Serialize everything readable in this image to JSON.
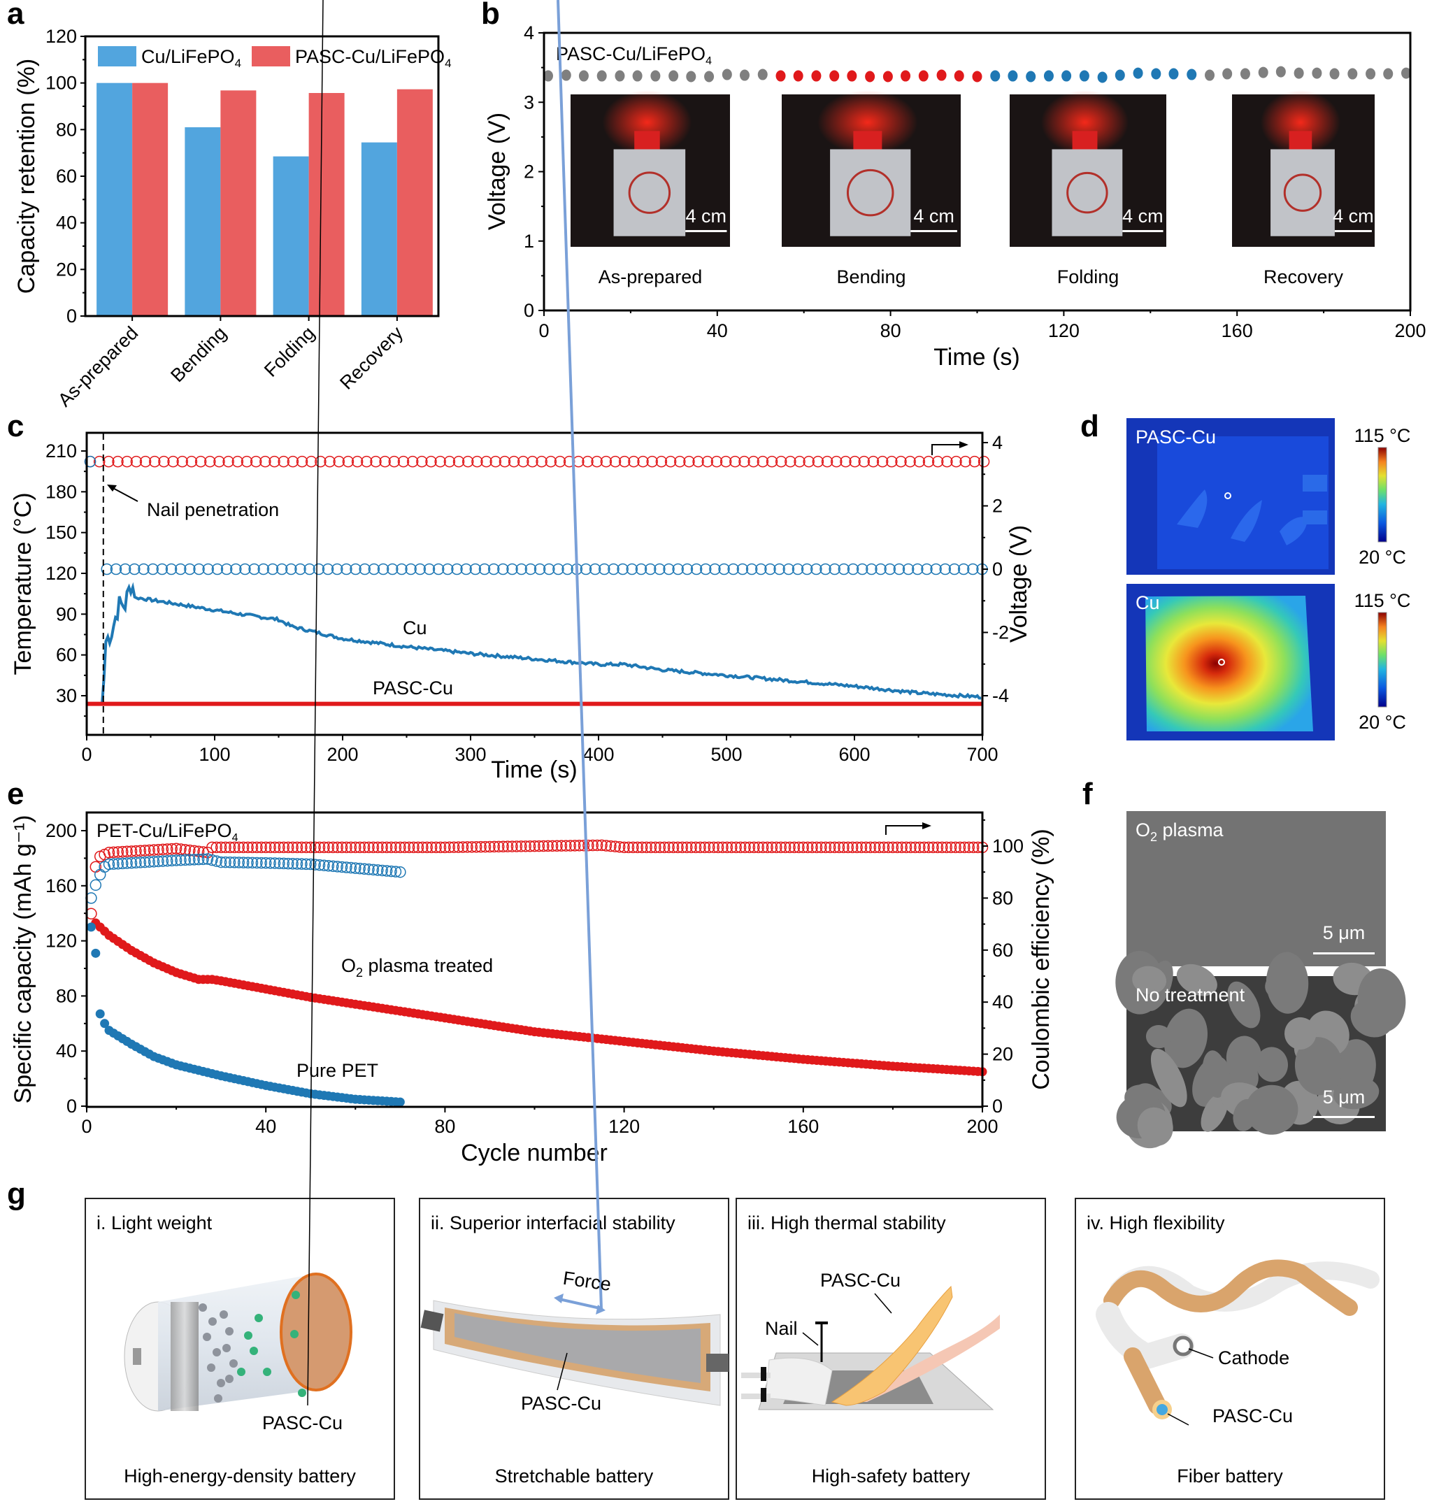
{
  "figure_labels": [
    "a",
    "b",
    "c",
    "d",
    "e",
    "f",
    "g"
  ],
  "chart_data": [
    {
      "id": "a",
      "type": "bar",
      "categories": [
        "As-prepared",
        "Bending",
        "Folding",
        "Recovery"
      ],
      "series": [
        {
          "name": "Cu/LiFePO4",
          "name_main": "Cu/LiFePO",
          "name_sub": "4",
          "color": "#52a5de",
          "values": [
            100,
            81,
            68.5,
            74.5
          ]
        },
        {
          "name": "PASC-Cu/LiFePO4",
          "name_main": "PASC-Cu/LiFePO",
          "name_sub": "4",
          "color": "#e95e5f",
          "values": [
            100,
            96.8,
            95.7,
            97.3
          ]
        }
      ],
      "xlabel": "",
      "ylabel": "Capacity retention (%)",
      "ylim": [
        0,
        120
      ],
      "yticks": [
        "0",
        "20",
        "40",
        "60",
        "80",
        "100",
        "120"
      ],
      "legend": "top"
    },
    {
      "id": "b",
      "type": "scatter",
      "title_main": "PASC-Cu/LiFePO",
      "title_sub": "4",
      "xlabel": "Time (s)",
      "ylabel": "Voltage (V)",
      "xlim": [
        0,
        200
      ],
      "ylim": [
        0,
        4
      ],
      "xticks": [
        "0",
        "40",
        "80",
        "120",
        "160",
        "200"
      ],
      "yticks": [
        "0",
        "1",
        "2",
        "3",
        "4"
      ],
      "series": [
        {
          "name": "As-prepared",
          "color": "#7f7f7f",
          "x": [
            0,
            4.2,
            8.3,
            12.5,
            16.7,
            20.8,
            25,
            29.2,
            33.3,
            37.5,
            41.7,
            45.8,
            50
          ],
          "y": [
            3.38,
            3.39,
            3.38,
            3.38,
            3.38,
            3.38,
            3.38,
            3.38,
            3.37,
            3.37,
            3.4,
            3.39,
            3.4
          ]
        },
        {
          "name": "Bending",
          "color": "#e0191b",
          "x": [
            54.2,
            58.3,
            62.5,
            66.7,
            70.8,
            75,
            79.2,
            83.3,
            87.5,
            91.7,
            95.8,
            100
          ],
          "y": [
            3.38,
            3.38,
            3.38,
            3.38,
            3.38,
            3.37,
            3.37,
            3.38,
            3.38,
            3.39,
            3.38,
            3.37
          ]
        },
        {
          "name": "Folding",
          "color": "#1f78b4",
          "x": [
            104.2,
            108.3,
            112.5,
            116.7,
            120.8,
            125,
            129.2,
            133.3,
            137.5,
            141.7,
            145.8,
            150
          ],
          "y": [
            3.38,
            3.38,
            3.37,
            3.38,
            3.38,
            3.38,
            3.36,
            3.39,
            3.42,
            3.41,
            3.41,
            3.4
          ]
        },
        {
          "name": "Recovery",
          "color": "#7f7f7f",
          "x": [
            154.2,
            158.3,
            162.5,
            166.7,
            170.8,
            175,
            179.2,
            183.3,
            187.5,
            191.7,
            195.8,
            200
          ],
          "y": [
            3.39,
            3.41,
            3.41,
            3.43,
            3.44,
            3.42,
            3.42,
            3.41,
            3.41,
            3.41,
            3.41,
            3.42
          ]
        }
      ],
      "photos": [
        {
          "label": "As-prepared",
          "scale": "4 cm"
        },
        {
          "label": "Bending",
          "scale": "4 cm"
        },
        {
          "label": "Folding",
          "scale": "4 cm"
        },
        {
          "label": "Recovery",
          "scale": "4 cm"
        }
      ]
    },
    {
      "id": "c",
      "type": "line",
      "xlabel": "Time (s)",
      "ylabel_left": "Temperature (°C)",
      "ylabel_right": "Voltage (V)",
      "xlim": [
        0,
        700
      ],
      "ylim_left": [
        10,
        220
      ],
      "ylim_right": [
        -4.5,
        4.3
      ],
      "xticks": [
        "0",
        "100",
        "200",
        "300",
        "400",
        "500",
        "600",
        "700"
      ],
      "yticks_left": [
        "30",
        "60",
        "90",
        "120",
        "150",
        "180",
        "210"
      ],
      "yticks_right": [
        "-4",
        "-2",
        "0",
        "2",
        "4"
      ],
      "annotation": "Nail penetration",
      "nail_time": 13,
      "series": [
        {
          "name": "Cu",
          "axis": "left",
          "color": "#1f78b4",
          "x": [
            0,
            12,
            13,
            14,
            15,
            20,
            25,
            30,
            35,
            38,
            40,
            60,
            80,
            100,
            120,
            150,
            160,
            200,
            250,
            300,
            350,
            400,
            420,
            450,
            500,
            550,
            600,
            650,
            700
          ],
          "y": [
            24,
            24,
            26,
            60,
            70,
            78,
            97,
            97,
            114,
            101,
            102,
            99,
            96,
            93,
            90,
            86,
            81,
            72,
            66,
            61,
            57,
            53,
            53,
            49,
            45,
            41,
            37,
            32,
            29
          ]
        },
        {
          "name": "PASC-Cu",
          "axis": "left",
          "color": "#e0191b",
          "x": [
            0,
            700
          ],
          "y": [
            24,
            24
          ]
        },
        {
          "name": "PASC-Cu voltage",
          "axis": "right",
          "color": "#e0191b",
          "marker": "open-circle",
          "x_start": 0,
          "x_end": 700,
          "value": 3.4
        },
        {
          "name": "Cu voltage",
          "axis": "right",
          "color": "#1f78b4",
          "marker": "open-circle",
          "x_start": 13,
          "x_end": 700,
          "value": 0.0
        }
      ],
      "labels": {
        "cu": "Cu",
        "pasc": "PASC-Cu"
      }
    },
    {
      "id": "e",
      "type": "scatter",
      "title_main": "PET-Cu/LiFePO",
      "title_sub": "4",
      "xlabel": "Cycle number",
      "ylabel_left": "Specific capacity (mAh g⁻¹)",
      "ylabel_right": "Coulombic efficiency (%)",
      "xlim": [
        0,
        200
      ],
      "ylim_left": [
        0,
        210
      ],
      "ylim_right": [
        0,
        112
      ],
      "xticks": [
        "0",
        "40",
        "80",
        "120",
        "160",
        "200"
      ],
      "yticks_left": [
        "0",
        "40",
        "80",
        "120",
        "160",
        "200"
      ],
      "yticks_right": [
        "0",
        "20",
        "40",
        "60",
        "80",
        "100"
      ],
      "series": [
        {
          "name": "O2 plasma treated capacity",
          "axis": "left",
          "color": "#e0191b",
          "marker": "filled",
          "x": [
            2,
            5,
            10,
            15,
            20,
            25,
            28,
            30,
            40,
            50,
            60,
            70,
            80,
            90,
            100,
            120,
            140,
            160,
            180,
            200
          ],
          "y": [
            133,
            124,
            113,
            104,
            97,
            92,
            92,
            91,
            85,
            79,
            74,
            69,
            64,
            59,
            54,
            47,
            40,
            34,
            29,
            25
          ]
        },
        {
          "name": "Pure PET capacity",
          "axis": "left",
          "color": "#1f78b4",
          "marker": "filled",
          "x": [
            1,
            2,
            3,
            4,
            5,
            10,
            15,
            20,
            25,
            30,
            40,
            50,
            60,
            70
          ],
          "y": [
            130,
            111,
            67,
            60,
            55,
            45,
            36,
            30,
            26,
            22,
            15,
            9,
            5,
            3
          ]
        },
        {
          "name": "O2 plasma treated CE",
          "axis": "right",
          "color": "#e0191b",
          "marker": "open",
          "x": [
            1,
            2,
            3,
            5,
            10,
            20,
            27,
            28,
            40,
            80,
            115,
            120,
            160,
            200
          ],
          "y": [
            74,
            92,
            96,
            97.5,
            98,
            99,
            97.5,
            99.5,
            99.5,
            99.5,
            100.3,
            99.5,
            99.5,
            99.5
          ]
        },
        {
          "name": "Pure PET CE",
          "axis": "right",
          "color": "#1f78b4",
          "marker": "open",
          "x": [
            1,
            2,
            3,
            4,
            5,
            10,
            20,
            27,
            30,
            40,
            50,
            60,
            70
          ],
          "y": [
            80,
            85,
            89,
            92,
            93,
            93.5,
            94.5,
            95,
            93.8,
            93.5,
            93,
            91.5,
            90
          ]
        }
      ],
      "labels": {
        "o2_main": "O",
        "o2_sub": "2",
        "o2_rest": " plasma treated",
        "pure": "Pure PET"
      }
    }
  ],
  "panel_d": {
    "images": [
      {
        "label": "PASC-Cu",
        "scale_max": "115 °C",
        "scale_min": "20 °C"
      },
      {
        "label": "Cu",
        "scale_max": "115 °C",
        "scale_min": "20 °C"
      }
    ]
  },
  "panel_f": {
    "images": [
      {
        "label_main": "O",
        "label_sub": "2",
        "label_rest": " plasma",
        "scale": "5 μm"
      },
      {
        "label_main": "No treatment",
        "scale": "5 μm"
      }
    ]
  },
  "panel_g": {
    "boxes": [
      {
        "title": "i. Light weight",
        "caption": "High-energy-density battery",
        "callouts": [
          "PASC-Cu"
        ]
      },
      {
        "title": "ii. Superior interfacial stability",
        "caption": "Stretchable battery",
        "callouts": [
          "Force",
          "PASC-Cu"
        ]
      },
      {
        "title": "iii. High thermal stability",
        "caption": "High-safety battery",
        "callouts": [
          "PASC-Cu",
          "Nail"
        ]
      },
      {
        "title": "iv. High flexibility",
        "caption": "Fiber battery",
        "callouts": [
          "Cathode",
          "PASC-Cu"
        ]
      }
    ]
  }
}
